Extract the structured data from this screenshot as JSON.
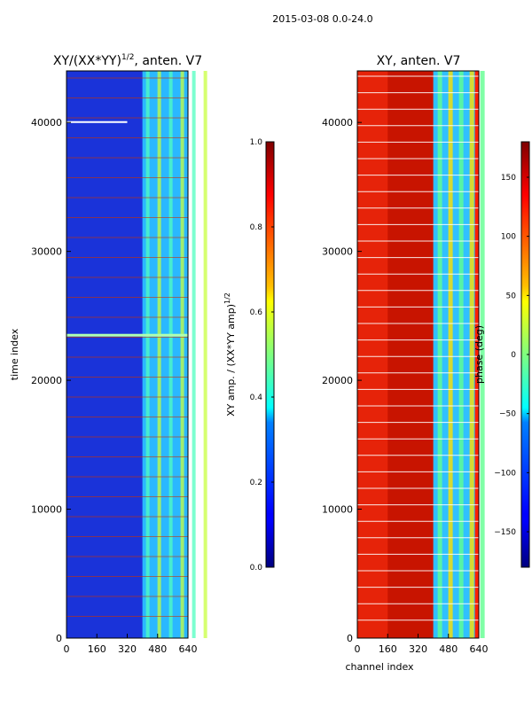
{
  "suptitle": "2015-03-08 0.0-24.0",
  "chart_data": [
    {
      "type": "heatmap",
      "title_prefix": "XY/(XX*YY)",
      "title_exp": "1/2",
      "title_suffix": ", anten. V7",
      "xlabel": "",
      "ylabel": "time index",
      "xlim": [
        0,
        640
      ],
      "ylim": [
        0,
        44000
      ],
      "xticks": [
        0,
        160,
        320,
        480,
        640
      ],
      "yticks": [
        0,
        10000,
        20000,
        30000,
        40000
      ],
      "colorbar": {
        "label": "XY amp. / (XX*YY amp)",
        "label_exp": "1/2",
        "vmin": 0.0,
        "vmax": 1.0,
        "ticks": [
          "0.0",
          "0.2",
          "0.4",
          "0.6",
          "0.8",
          "1.0"
        ],
        "colormap": "jet"
      },
      "dominant_value_low_channels": 0.1,
      "bright_band_channels": [
        400,
        640
      ],
      "bright_band_value": 0.45,
      "flag_lines_color": "#cc3300"
    },
    {
      "type": "heatmap",
      "title": "XY, anten. V7",
      "xlabel": "channel index",
      "ylabel": "",
      "xlim": [
        0,
        640
      ],
      "ylim": [
        0,
        44000
      ],
      "xticks": [
        0,
        160,
        320,
        480,
        640
      ],
      "yticks": [
        0,
        10000,
        20000,
        30000,
        40000
      ],
      "colorbar": {
        "label": "phase (deg)",
        "vmin": -180,
        "vmax": 180,
        "ticks": [
          "−150",
          "−100",
          "−50",
          "0",
          "50",
          "100",
          "150"
        ],
        "tick_values": [
          -150,
          -100,
          -50,
          0,
          50,
          100,
          150
        ],
        "colormap": "jet"
      },
      "dominant_value_low_channels": 150,
      "bright_band_channels": [
        400,
        620
      ],
      "flag_lines_color": "#ffffff"
    }
  ]
}
